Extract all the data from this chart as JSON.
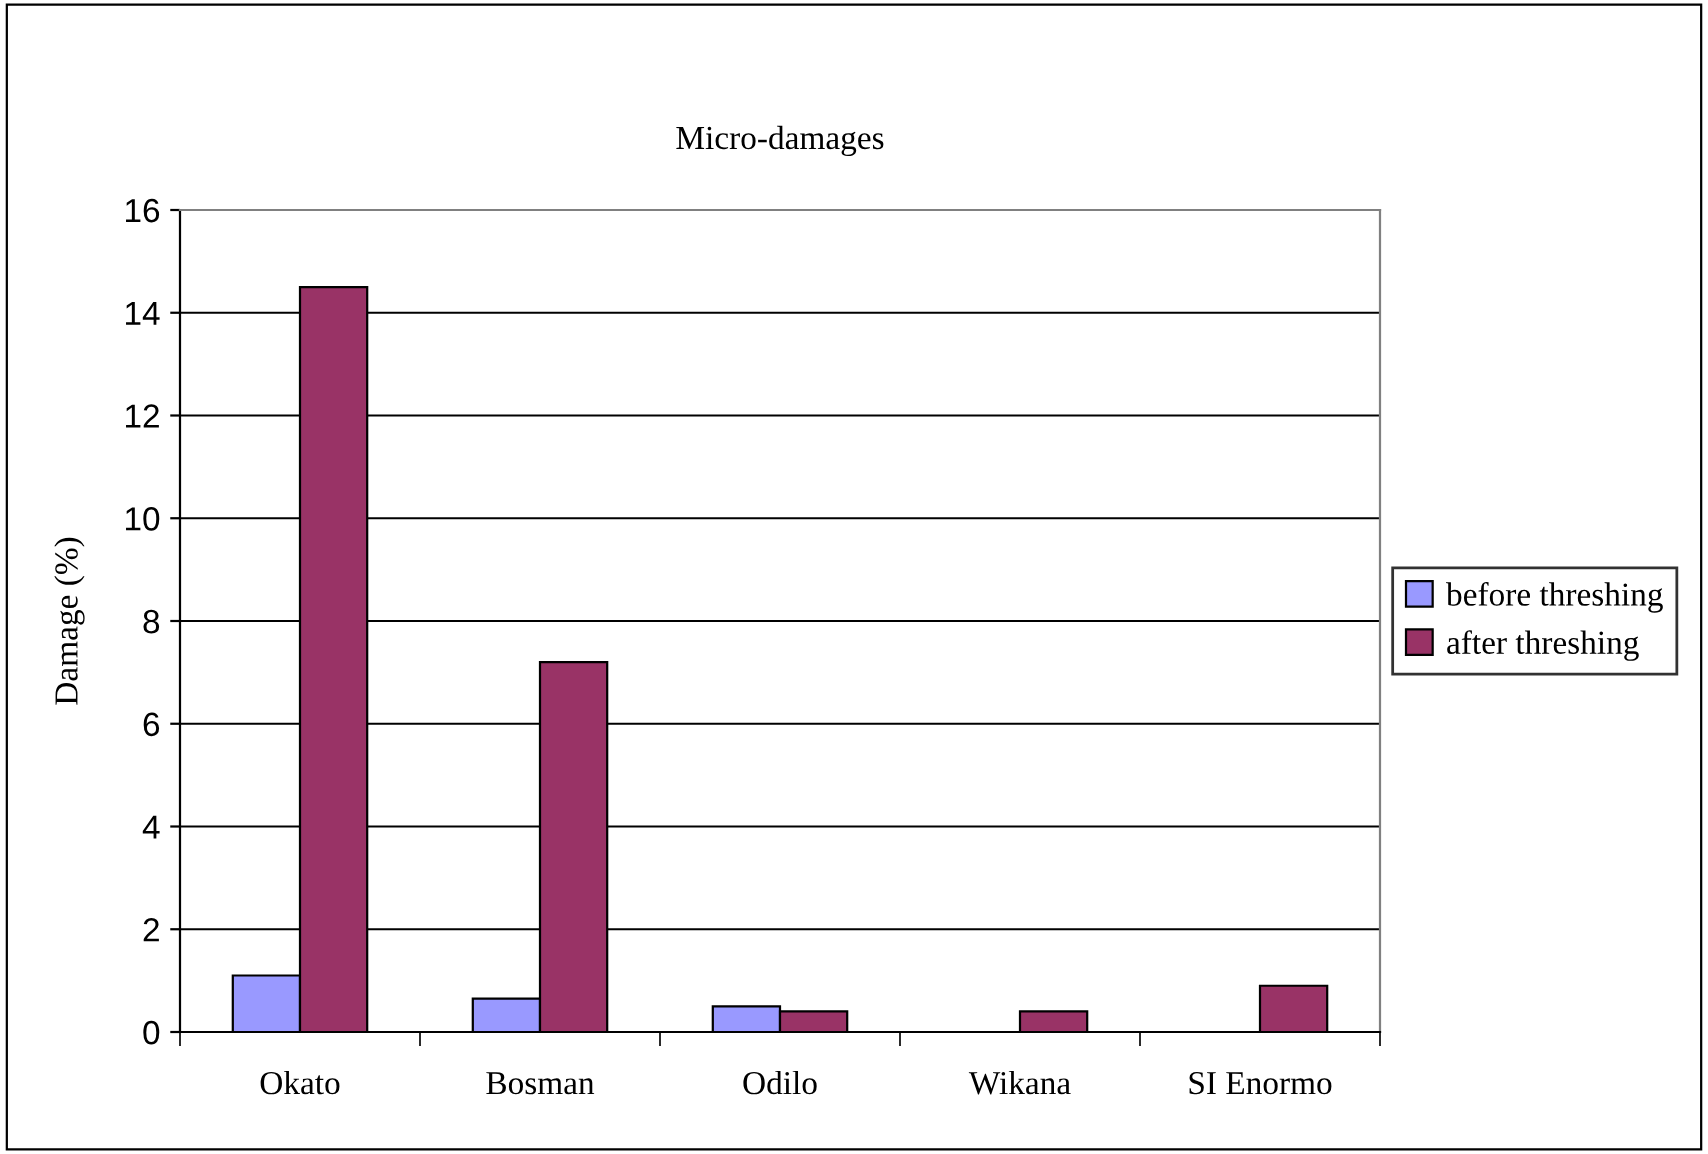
{
  "chart_data": {
    "type": "bar",
    "title": "Micro-damages",
    "ylabel": "Damage (%)",
    "categories": [
      "Okato",
      "Bosman",
      "Odilo",
      "Wikana",
      "SI Enormo"
    ],
    "series": [
      {
        "name": "before threshing",
        "color": "#9999ff",
        "values": [
          1.1,
          0.65,
          0.5,
          null,
          null
        ]
      },
      {
        "name": "after threshing",
        "color": "#993366",
        "values": [
          14.5,
          7.2,
          0.4,
          0.4,
          0.9
        ]
      }
    ],
    "ylim": [
      0,
      16
    ],
    "yticks": [
      0,
      2,
      4,
      6,
      8,
      10,
      12,
      14,
      16
    ],
    "grid": "y",
    "legend": "right"
  }
}
